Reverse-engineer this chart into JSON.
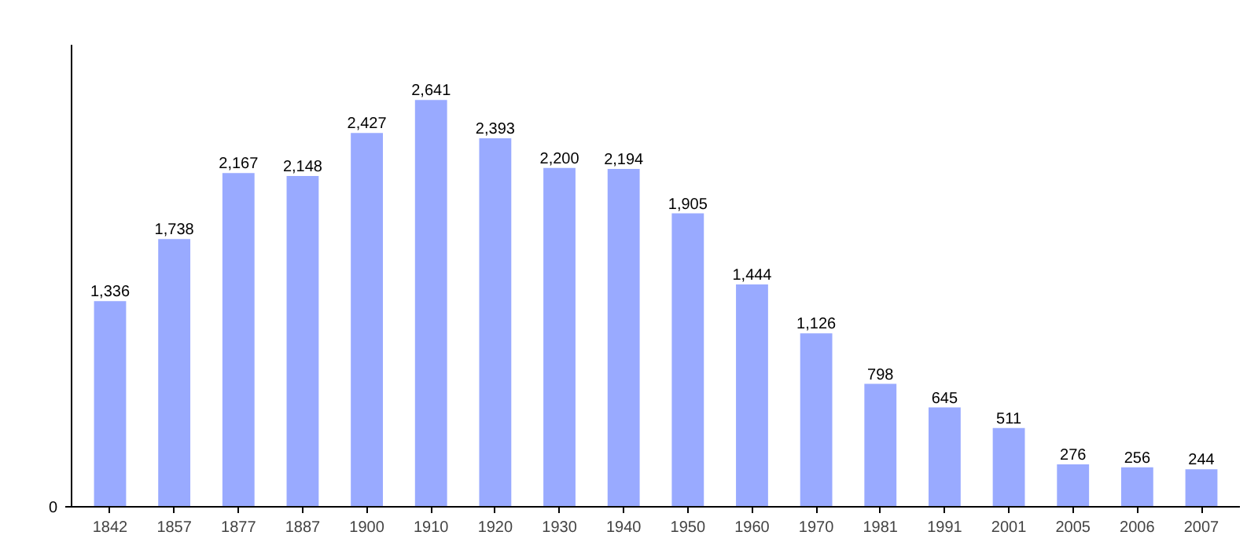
{
  "chart_data": {
    "type": "bar",
    "categories": [
      "1842",
      "1857",
      "1877",
      "1887",
      "1900",
      "1910",
      "1920",
      "1930",
      "1940",
      "1950",
      "1960",
      "1970",
      "1981",
      "1991",
      "2001",
      "2005",
      "2006",
      "2007"
    ],
    "values": [
      1336,
      1738,
      2167,
      2148,
      2427,
      2641,
      2393,
      2200,
      2194,
      1905,
      1444,
      1126,
      798,
      645,
      511,
      276,
      256,
      244
    ],
    "value_labels": [
      "1,336",
      "1,738",
      "2,167",
      "2,148",
      "2,427",
      "2,641",
      "2,393",
      "2,200",
      "2,194",
      "1,905",
      "1,444",
      "1,126",
      "798",
      "645",
      "511",
      "276",
      "256",
      "244"
    ],
    "annotations": [
      "0"
    ],
    "color": "#99aaff",
    "ylim": [
      0,
      3000
    ],
    "grid": false
  }
}
